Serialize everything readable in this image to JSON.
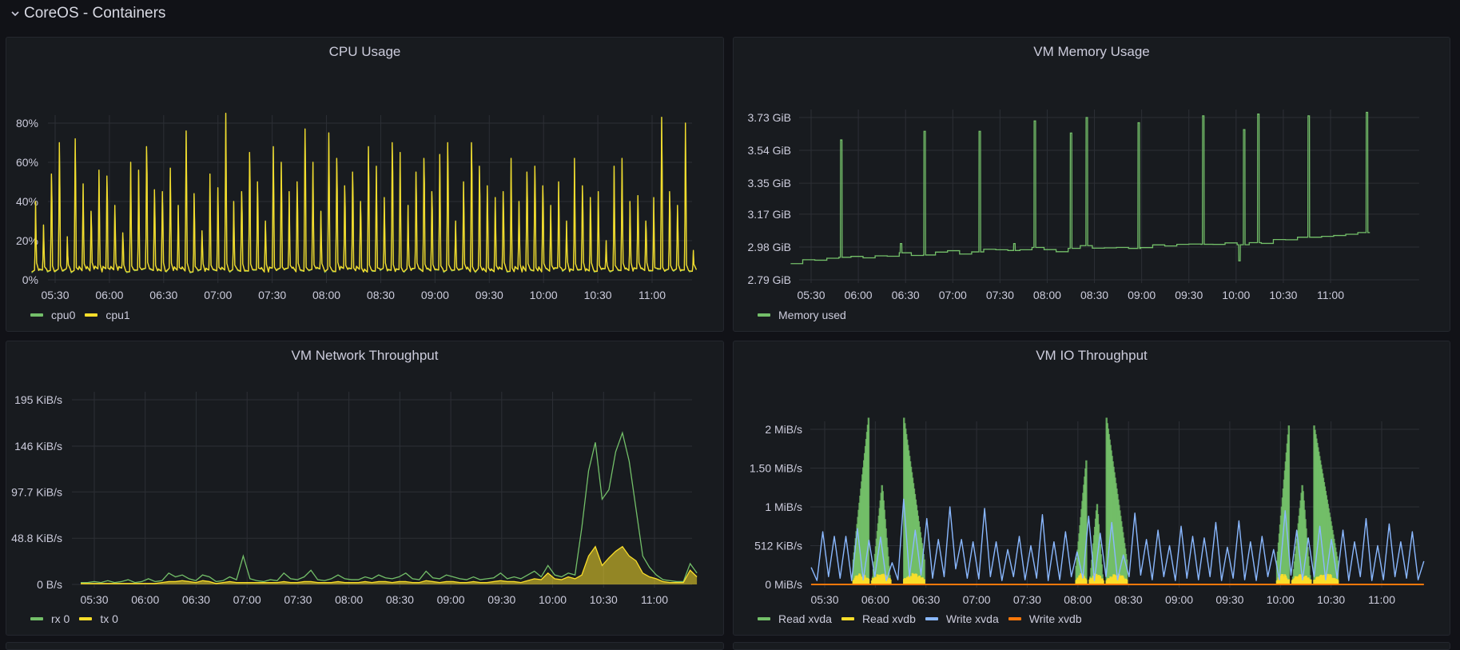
{
  "row": {
    "title": "CoreOS - Containers",
    "icon": "chevron-down-icon"
  },
  "colors": {
    "green": "#73bf69",
    "yellow": "#fade2a",
    "blue": "#8ab8ff",
    "orange": "#ff780a",
    "grid": "#2c2f35"
  },
  "chart_data": [
    {
      "id": "cpu",
      "type": "line",
      "title": "CPU Usage",
      "xlabel": "",
      "ylabel": "",
      "x_ticks": [
        "05:30",
        "06:00",
        "06:30",
        "07:00",
        "07:30",
        "08:00",
        "08:30",
        "09:00",
        "09:30",
        "10:00",
        "10:30",
        "11:00"
      ],
      "x_range": [
        "05:17",
        "11:25"
      ],
      "y_ticks": [
        "0%",
        "20%",
        "40%",
        "60%",
        "80%"
      ],
      "y_tick_values": [
        0,
        20,
        40,
        60,
        80
      ],
      "ylim": [
        0,
        90
      ],
      "grid": true,
      "legend": "bottom-left",
      "series": [
        {
          "name": "cpu0",
          "color": "#73bf69",
          "peaks": [
            40,
            28,
            54,
            70,
            22,
            72,
            49,
            35,
            56,
            53,
            38,
            24,
            60,
            56,
            68,
            46,
            45,
            57,
            38,
            76,
            44,
            25,
            54,
            47,
            85,
            40,
            45,
            65,
            50,
            30,
            68,
            60,
            45,
            50,
            77,
            60,
            35,
            75,
            62,
            48,
            55,
            40,
            68,
            58,
            42,
            70,
            65,
            38,
            55,
            62,
            45,
            64,
            70,
            30,
            50,
            70,
            58,
            48,
            42,
            45,
            62,
            40,
            55,
            58,
            48,
            38,
            50,
            30,
            62,
            48,
            42,
            45,
            20,
            58,
            62,
            40,
            43,
            30,
            42,
            83,
            45,
            38,
            80,
            15
          ]
        },
        {
          "name": "cpu1",
          "color": "#fade2a",
          "peaks": [
            40,
            28,
            54,
            70,
            22,
            72,
            49,
            35,
            56,
            53,
            38,
            24,
            60,
            56,
            68,
            46,
            45,
            57,
            38,
            76,
            44,
            25,
            54,
            47,
            85,
            40,
            45,
            65,
            50,
            30,
            68,
            60,
            45,
            50,
            77,
            60,
            35,
            75,
            62,
            48,
            55,
            40,
            68,
            58,
            42,
            70,
            65,
            38,
            55,
            62,
            45,
            64,
            70,
            30,
            50,
            70,
            58,
            48,
            42,
            45,
            62,
            40,
            55,
            58,
            48,
            38,
            50,
            30,
            62,
            48,
            42,
            45,
            20,
            58,
            62,
            40,
            43,
            30,
            42,
            83,
            45,
            38,
            80,
            15
          ]
        }
      ],
      "baseline": 4
    },
    {
      "id": "mem",
      "type": "line",
      "title": "VM Memory Usage",
      "xlabel": "",
      "ylabel": "",
      "x_ticks": [
        "05:30",
        "06:00",
        "06:30",
        "07:00",
        "07:30",
        "08:00",
        "08:30",
        "09:00",
        "09:30",
        "10:00",
        "10:30",
        "11:00"
      ],
      "x_range": [
        "05:17",
        "11:25"
      ],
      "y_ticks": [
        "2.79 GiB",
        "2.98 GiB",
        "3.17 GiB",
        "3.35 GiB",
        "3.54 GiB",
        "3.73 GiB"
      ],
      "y_tick_values": [
        2.79,
        2.98,
        3.17,
        3.35,
        3.54,
        3.73
      ],
      "ylim": [
        2.79,
        3.73
      ],
      "grid": true,
      "legend": "bottom-left",
      "series": [
        {
          "name": "Memory used",
          "color": "#73bf69",
          "baseline": [
            2.89,
            2.9,
            2.91,
            2.91,
            2.92,
            2.93,
            2.92,
            2.93,
            2.93,
            2.94,
            2.94,
            2.94,
            2.95,
            2.95,
            2.94,
            2.95,
            2.96,
            2.96,
            2.96,
            2.96,
            2.97,
            2.96,
            2.96,
            2.97,
            2.98,
            2.98,
            2.98,
            2.97,
            2.98,
            2.98,
            2.99,
            2.98,
            2.99,
            3.0,
            2.99,
            2.99,
            3.0,
            3.0,
            3.01,
            3.01,
            3.02,
            3.02,
            3.03,
            3.04,
            3.04,
            3.05,
            3.06,
            3.06
          ],
          "spikes": [
            {
              "t": "05:49",
              "v": 3.6
            },
            {
              "t": "06:27",
              "v": 3.0
            },
            {
              "t": "06:42",
              "v": 3.65
            },
            {
              "t": "07:17",
              "v": 3.65
            },
            {
              "t": "07:39",
              "v": 3.0
            },
            {
              "t": "07:52",
              "v": 3.71
            },
            {
              "t": "08:15",
              "v": 3.64
            },
            {
              "t": "08:25",
              "v": 3.73
            },
            {
              "t": "08:58",
              "v": 3.7
            },
            {
              "t": "09:39",
              "v": 3.74
            },
            {
              "t": "10:02",
              "v": 2.9
            },
            {
              "t": "10:05",
              "v": 3.66
            },
            {
              "t": "10:14",
              "v": 3.75
            },
            {
              "t": "10:46",
              "v": 3.74
            },
            {
              "t": "11:23",
              "v": 3.76
            }
          ]
        }
      ]
    },
    {
      "id": "net",
      "type": "line",
      "title": "VM Network Throughput",
      "xlabel": "",
      "ylabel": "",
      "x_ticks": [
        "05:30",
        "06:00",
        "06:30",
        "07:00",
        "07:30",
        "08:00",
        "08:30",
        "09:00",
        "09:30",
        "10:00",
        "10:30",
        "11:00"
      ],
      "x_range": [
        "05:22",
        "11:25"
      ],
      "y_ticks": [
        "0 B/s",
        "48.8 KiB/s",
        "97.7 KiB/s",
        "146 KiB/s",
        "195 KiB/s"
      ],
      "y_tick_values": [
        0,
        48.8,
        97.7,
        146,
        195
      ],
      "ylim": [
        0,
        195
      ],
      "grid": true,
      "legend": "bottom-left",
      "series": [
        {
          "name": "rx 0",
          "color": "#73bf69",
          "values": [
            2,
            2,
            3,
            2,
            4,
            2,
            3,
            5,
            2,
            3,
            6,
            3,
            4,
            12,
            8,
            10,
            6,
            4,
            10,
            8,
            3,
            4,
            8,
            5,
            30,
            6,
            4,
            3,
            5,
            4,
            12,
            6,
            5,
            8,
            15,
            5,
            4,
            6,
            10,
            6,
            5,
            5,
            8,
            6,
            10,
            7,
            6,
            8,
            12,
            6,
            5,
            14,
            7,
            6,
            10,
            8,
            6,
            5,
            8,
            5,
            6,
            7,
            12,
            6,
            8,
            6,
            10,
            14,
            8,
            20,
            10,
            8,
            12,
            10,
            60,
            120,
            150,
            90,
            100,
            140,
            160,
            130,
            80,
            30,
            18,
            10,
            5,
            4,
            3,
            3,
            22,
            12
          ]
        },
        {
          "name": "tx 0",
          "color": "#fade2a",
          "values": [
            1,
            1,
            1,
            1,
            1,
            1,
            1,
            1,
            1,
            1,
            1,
            1,
            2,
            3,
            3,
            4,
            3,
            2,
            4,
            3,
            1,
            2,
            3,
            2,
            2,
            2,
            2,
            2,
            2,
            2,
            3,
            2,
            2,
            3,
            3,
            2,
            2,
            2,
            3,
            2,
            2,
            2,
            3,
            2,
            3,
            3,
            2,
            3,
            3,
            2,
            2,
            4,
            3,
            2,
            3,
            3,
            2,
            2,
            3,
            2,
            2,
            3,
            4,
            3,
            3,
            2,
            4,
            6,
            5,
            12,
            6,
            5,
            8,
            6,
            10,
            30,
            40,
            20,
            28,
            35,
            40,
            30,
            25,
            12,
            8,
            6,
            3,
            2,
            2,
            2,
            15,
            8
          ]
        }
      ]
    },
    {
      "id": "io",
      "type": "area",
      "title": "VM IO Throughput",
      "xlabel": "",
      "ylabel": "",
      "x_ticks": [
        "05:30",
        "06:00",
        "06:30",
        "07:00",
        "07:30",
        "08:00",
        "08:30",
        "09:00",
        "09:30",
        "10:00",
        "10:30",
        "11:00"
      ],
      "x_range": [
        "05:22",
        "11:25"
      ],
      "y_ticks": [
        "0 MiB/s",
        "512 KiB/s",
        "1 MiB/s",
        "1.50 MiB/s",
        "2 MiB/s"
      ],
      "y_tick_values": [
        0,
        0.5,
        1,
        1.5,
        2
      ],
      "ylim": [
        0,
        2.1
      ],
      "grid": true,
      "legend": "bottom-left",
      "series": [
        {
          "name": "Read xvda",
          "color": "#73bf69",
          "bursts": [
            {
              "start": "05:47",
              "end": "05:56",
              "peak": 2.15,
              "shape": "rise"
            },
            {
              "start": "05:58",
              "end": "06:09",
              "peak": 1.3,
              "shape": "tri"
            },
            {
              "start": "06:17",
              "end": "06:29",
              "peak": 2.15,
              "shape": "fall"
            },
            {
              "start": "07:59",
              "end": "08:05",
              "peak": 1.6,
              "shape": "rise"
            },
            {
              "start": "08:07",
              "end": "08:15",
              "peak": 1.05,
              "shape": "tri"
            },
            {
              "start": "08:17",
              "end": "08:29",
              "peak": 2.15,
              "shape": "fall"
            },
            {
              "start": "09:58",
              "end": "10:05",
              "peak": 2.05,
              "shape": "rise"
            },
            {
              "start": "10:07",
              "end": "10:18",
              "peak": 1.3,
              "shape": "tri"
            },
            {
              "start": "10:20",
              "end": "10:34",
              "peak": 2.05,
              "shape": "fall"
            }
          ]
        },
        {
          "name": "Read xvdb",
          "color": "#fade2a",
          "peak": 0.15
        },
        {
          "name": "Write xvda",
          "color": "#8ab8ff",
          "values": [
            0.22,
            0.05,
            0.68,
            0.1,
            0.62,
            0.08,
            0.62,
            0.05,
            0.72,
            0.06,
            0.57,
            0.1,
            0.61,
            0.05,
            0.28,
            0.06,
            1.1,
            0.1,
            0.7,
            0.12,
            0.85,
            0.08,
            0.58,
            0.1,
            1.0,
            0.2,
            0.58,
            0.08,
            0.55,
            0.07,
            0.98,
            0.1,
            0.55,
            0.05,
            0.45,
            0.1,
            0.62,
            0.06,
            0.5,
            0.08,
            0.9,
            0.05,
            0.55,
            0.06,
            0.68,
            0.1,
            0.42,
            0.08,
            0.88,
            0.05,
            0.66,
            0.1,
            0.8,
            0.06,
            0.38,
            0.1,
            0.92,
            0.12,
            0.58,
            0.06,
            0.7,
            0.1,
            0.5,
            0.05,
            0.75,
            0.08,
            0.62,
            0.06,
            0.6,
            0.1,
            0.8,
            0.05,
            0.48,
            0.08,
            0.82,
            0.06,
            0.55,
            0.05,
            0.62,
            0.1,
            0.45,
            0.06,
            0.95,
            0.12,
            0.7,
            0.06,
            0.6,
            0.1,
            0.75,
            0.06,
            0.58,
            0.08,
            0.7,
            0.05,
            0.55,
            0.1,
            0.85,
            0.05,
            0.5,
            0.06,
            0.78,
            0.1,
            0.55,
            0.08,
            0.68,
            0.06,
            0.3
          ]
        },
        {
          "name": "Write xvdb",
          "color": "#ff780a",
          "value": 0
        }
      ]
    }
  ]
}
